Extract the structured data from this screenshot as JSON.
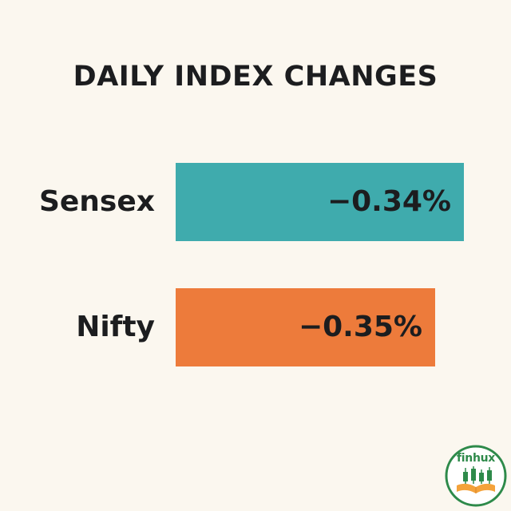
{
  "chart_data": {
    "type": "bar",
    "title": "DAILY INDEX CHANGES",
    "categories": [
      "Sensex",
      "Nifty"
    ],
    "values": [
      -0.34,
      -0.35
    ],
    "value_labels": [
      "−0.34%",
      "−0.35%"
    ],
    "colors": [
      "#3fabad",
      "#ed7b3b"
    ],
    "orientation": "horizontal",
    "xlabel": "",
    "ylabel": "",
    "grid": false
  },
  "logo": {
    "text": "finhux",
    "icon": "candlestick-book-icon",
    "colors": {
      "ring": "#2e8a4a",
      "fill": "#ffffff",
      "candle": "#2e8a4a",
      "book": "#f4a23a"
    }
  }
}
